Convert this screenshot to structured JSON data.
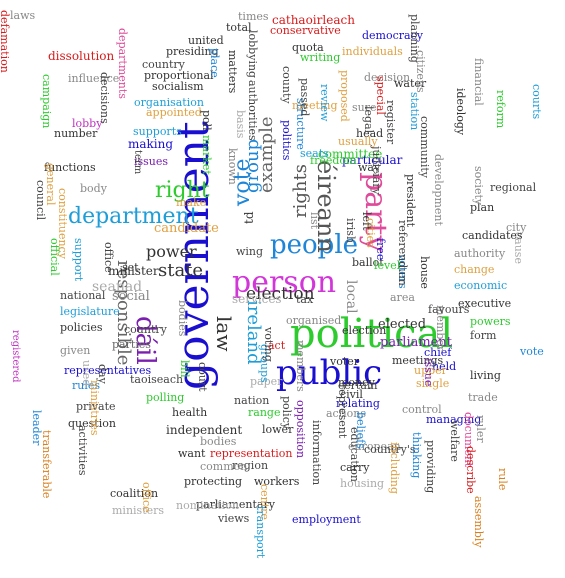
{
  "words": [
    {
      "text": "government",
      "color": "#1a0fd0"
    },
    {
      "text": "political",
      "color": "#2ecb2e"
    },
    {
      "text": "person",
      "color": "#d236d8"
    },
    {
      "text": "public",
      "color": "#1a0fd0"
    },
    {
      "text": "people",
      "color": "#1e86d8"
    },
    {
      "text": "party",
      "color": "#e04a9a"
    },
    {
      "text": "department",
      "color": "#1e9ed8"
    },
    {
      "text": "dáil",
      "color": "#7a1fb0"
    },
    {
      "text": "éireann",
      "color": "#555555"
    },
    {
      "text": "election",
      "color": "#333333"
    },
    {
      "text": "vote",
      "color": "#1e86d8"
    },
    {
      "text": "rights",
      "color": "#555555"
    },
    {
      "text": "responsible",
      "color": "#666666"
    },
    {
      "text": "state",
      "color": "#333333"
    },
    {
      "text": "law",
      "color": "#333333"
    },
    {
      "text": "right",
      "color": "#2ecb2e"
    },
    {
      "text": "example",
      "color": "#666666"
    },
    {
      "text": "group",
      "color": "#1e86d8"
    },
    {
      "text": "ireland",
      "color": "#1e9ed8"
    },
    {
      "text": "local",
      "color": "#888888"
    },
    {
      "text": "power",
      "color": "#333333"
    },
    {
      "text": "candidate",
      "color": "#e0a040"
    },
    {
      "text": "seanad",
      "color": "#aaaaaa"
    },
    {
      "text": "social",
      "color": "#888888"
    },
    {
      "text": "elected",
      "color": "#333333"
    },
    {
      "text": "parliament",
      "color": "#7a1fb0"
    },
    {
      "text": "services",
      "color": "#aaaaaa"
    },
    {
      "text": "td",
      "color": "#333333"
    },
    {
      "text": "wing",
      "color": "#444444"
    },
    {
      "text": "minister",
      "color": "#333333"
    },
    {
      "text": "national",
      "color": "#444444"
    },
    {
      "text": "policies",
      "color": "#333333"
    },
    {
      "text": "legislature",
      "color": "#1e9ed8"
    },
    {
      "text": "country",
      "color": "#444444"
    },
    {
      "text": "parties",
      "color": "#666666"
    },
    {
      "text": "representatives",
      "color": "#1a0fd0"
    },
    {
      "text": "rules",
      "color": "#1e86d8"
    },
    {
      "text": "taoiseach",
      "color": "#444444"
    },
    {
      "text": "polling",
      "color": "#2ecb2e"
    },
    {
      "text": "private",
      "color": "#444444"
    },
    {
      "text": "health",
      "color": "#333333"
    },
    {
      "text": "question",
      "color": "#333333"
    },
    {
      "text": "independent",
      "color": "#333333"
    },
    {
      "text": "nation",
      "color": "#444444"
    },
    {
      "text": "range",
      "color": "#2ecb2e"
    },
    {
      "text": "lower",
      "color": "#333333"
    },
    {
      "text": "bodies",
      "color": "#888888"
    },
    {
      "text": "want",
      "color": "#333333"
    },
    {
      "text": "representation",
      "color": "#d81b1b"
    },
    {
      "text": "region",
      "color": "#444444"
    },
    {
      "text": "common",
      "color": "#888888"
    },
    {
      "text": "protecting",
      "color": "#333333"
    },
    {
      "text": "workers",
      "color": "#333333"
    },
    {
      "text": "parliamentary",
      "color": "#333333"
    },
    {
      "text": "views",
      "color": "#444444"
    },
    {
      "text": "employment",
      "color": "#1a0fd0"
    },
    {
      "text": "coalition",
      "color": "#333333"
    },
    {
      "text": "ministers",
      "color": "#aaaaaa"
    },
    {
      "text": "activities",
      "color": "#444444"
    },
    {
      "text": "transferable",
      "color": "#d88020"
    },
    {
      "text": "leader",
      "color": "#1e86d8"
    },
    {
      "text": "registered",
      "color": "#c02fc0"
    },
    {
      "text": "official",
      "color": "#2ecb2e"
    },
    {
      "text": "support",
      "color": "#1e9ed8"
    },
    {
      "text": "given",
      "color": "#888888"
    },
    {
      "text": "office",
      "color": "#444444"
    },
    {
      "text": "set",
      "color": "#333333"
    },
    {
      "text": "functions",
      "color": "#333333"
    },
    {
      "text": "council",
      "color": "#444444"
    },
    {
      "text": "body",
      "color": "#888888"
    },
    {
      "text": "general",
      "color": "#e0a040"
    },
    {
      "text": "lobby",
      "color": "#c02fc0"
    },
    {
      "text": "number",
      "color": "#333333"
    },
    {
      "text": "supports",
      "color": "#1e9ed8"
    },
    {
      "text": "making",
      "color": "#1a0fd0"
    },
    {
      "text": "issues",
      "color": "#7a1fb0"
    },
    {
      "text": "term",
      "color": "#444444"
    },
    {
      "text": "make",
      "color": "#e0a040"
    },
    {
      "text": "organisation",
      "color": "#1e9ed8"
    },
    {
      "text": "appointed",
      "color": "#e0a040"
    },
    {
      "text": "proportional",
      "color": "#333333"
    },
    {
      "text": "country",
      "color": "#444444"
    },
    {
      "text": "influence",
      "color": "#888888"
    },
    {
      "text": "dissolution",
      "color": "#d81b1b"
    },
    {
      "text": "campaign",
      "color": "#2ecb2e"
    },
    {
      "text": "decisions",
      "color": "#444444"
    },
    {
      "text": "socialism",
      "color": "#333333"
    },
    {
      "text": "presiding",
      "color": "#333333"
    },
    {
      "text": "united",
      "color": "#333333"
    },
    {
      "text": "total",
      "color": "#333333"
    },
    {
      "text": "cathaoirleach",
      "color": "#d81b1b"
    },
    {
      "text": "conservative",
      "color": "#d81b1b"
    },
    {
      "text": "democracy",
      "color": "#1a0fd0"
    },
    {
      "text": "quota",
      "color": "#333333"
    },
    {
      "text": "writing",
      "color": "#2ecb2e"
    },
    {
      "text": "individuals",
      "color": "#e0a040"
    },
    {
      "text": "decision",
      "color": "#888888"
    },
    {
      "text": "special",
      "color": "#d81b1b"
    },
    {
      "text": "times",
      "color": "#888888"
    },
    {
      "text": "lobbying",
      "color": "#444444"
    },
    {
      "text": "place",
      "color": "#1e86d8"
    },
    {
      "text": "matters",
      "color": "#333333"
    },
    {
      "text": "meeting",
      "color": "#e0a040"
    },
    {
      "text": "authorities",
      "color": "#444444"
    },
    {
      "text": "basis",
      "color": "#aaaaaa"
    },
    {
      "text": "politics",
      "color": "#1a0fd0"
    },
    {
      "text": "structure",
      "color": "#1e86d8"
    },
    {
      "text": "known",
      "color": "#888888"
    },
    {
      "text": "poll",
      "color": "#333333"
    },
    {
      "text": "market",
      "color": "#2ecb2e"
    },
    {
      "text": "particular",
      "color": "#1a0fd0"
    },
    {
      "text": "committee",
      "color": "#2ecb2e"
    },
    {
      "text": "seats",
      "color": "#1e9ed8"
    },
    {
      "text": "usually",
      "color": "#e0a040"
    },
    {
      "text": "head",
      "color": "#333333"
    },
    {
      "text": "sure",
      "color": "#888888"
    },
    {
      "text": "freedom",
      "color": "#2ecb2e"
    },
    {
      "text": "way",
      "color": "#333333"
    },
    {
      "text": "register",
      "color": "#444444"
    },
    {
      "text": "legal",
      "color": "#444444"
    },
    {
      "text": "water",
      "color": "#333333"
    },
    {
      "text": "judiciary",
      "color": "#444444"
    },
    {
      "text": "president",
      "color": "#333333"
    },
    {
      "text": "voters",
      "color": "#1e86d8"
    },
    {
      "text": "house",
      "color": "#333333"
    },
    {
      "text": "list",
      "color": "#888888"
    },
    {
      "text": "left",
      "color": "#333333"
    },
    {
      "text": "ballot",
      "color": "#333333"
    },
    {
      "text": "irish",
      "color": "#444444"
    },
    {
      "text": "cities",
      "color": "#e0a040"
    },
    {
      "text": "free",
      "color": "#1a0fd0"
    },
    {
      "text": "referendum",
      "color": "#444444"
    },
    {
      "text": "area",
      "color": "#888888"
    },
    {
      "text": "election",
      "color": "#333333"
    },
    {
      "text": "chief",
      "color": "#1a0fd0"
    },
    {
      "text": "held",
      "color": "#1a0fd0"
    },
    {
      "text": "meetings",
      "color": "#333333"
    },
    {
      "text": "member",
      "color": "#888888"
    },
    {
      "text": "upper",
      "color": "#e0a040"
    },
    {
      "text": "single",
      "color": "#e0a040"
    },
    {
      "text": "money",
      "color": "#333333"
    },
    {
      "text": "civil",
      "color": "#333333"
    },
    {
      "text": "relating",
      "color": "#1a0fd0"
    },
    {
      "text": "actions",
      "color": "#888888"
    },
    {
      "text": "control",
      "color": "#888888"
    },
    {
      "text": "managing",
      "color": "#1a0fd0"
    },
    {
      "text": "education",
      "color": "#444444"
    },
    {
      "text": "european",
      "color": "#888888"
    },
    {
      "text": "country's",
      "color": "#444444"
    },
    {
      "text": "carry",
      "color": "#333333"
    },
    {
      "text": "housing",
      "color": "#aaaaaa"
    },
    {
      "text": "information",
      "color": "#444444"
    },
    {
      "text": "opposition",
      "color": "#7a1fb0"
    },
    {
      "text": "policy",
      "color": "#444444"
    },
    {
      "text": "members",
      "color": "#888888"
    },
    {
      "text": "voter",
      "color": "#333333"
    },
    {
      "text": "certain",
      "color": "#444444"
    },
    {
      "text": "act",
      "color": "#d81b1b"
    },
    {
      "text": "paper",
      "color": "#aaaaaa"
    },
    {
      "text": "groups",
      "color": "#1e9ed8"
    },
    {
      "text": "voting",
      "color": "#444444"
    },
    {
      "text": "court",
      "color": "#444444"
    },
    {
      "text": "bill",
      "color": "#2ecb2e"
    },
    {
      "text": "organised",
      "color": "#888888"
    },
    {
      "text": "including",
      "color": "#e0a040"
    },
    {
      "text": "beliefs",
      "color": "#1e86d8"
    },
    {
      "text": "providing",
      "color": "#444444"
    },
    {
      "text": "thinking",
      "color": "#1e86d8"
    },
    {
      "text": "welfare",
      "color": "#444444"
    },
    {
      "text": "document",
      "color": "#e04a9a"
    },
    {
      "text": "describe",
      "color": "#d81b1b"
    },
    {
      "text": "assembly",
      "color": "#d88020"
    },
    {
      "text": "rule",
      "color": "#d88020"
    },
    {
      "text": "ruler",
      "color": "#888888"
    },
    {
      "text": "trade",
      "color": "#888888"
    },
    {
      "text": "living",
      "color": "#333333"
    },
    {
      "text": "vote",
      "color": "#1e86d8"
    },
    {
      "text": "form",
      "color": "#444444"
    },
    {
      "text": "powers",
      "color": "#2ecb2e"
    },
    {
      "text": "executive",
      "color": "#333333"
    },
    {
      "text": "economic",
      "color": "#1e9ed8"
    },
    {
      "text": "change",
      "color": "#e0a040"
    },
    {
      "text": "authority",
      "color": "#888888"
    },
    {
      "text": "city",
      "color": "#888888"
    },
    {
      "text": "cause",
      "color": "#aaaaaa"
    },
    {
      "text": "candidates",
      "color": "#333333"
    },
    {
      "text": "plan",
      "color": "#333333"
    },
    {
      "text": "regional",
      "color": "#444444"
    },
    {
      "text": "society",
      "color": "#888888"
    },
    {
      "text": "development",
      "color": "#888888"
    },
    {
      "text": "community",
      "color": "#444444"
    },
    {
      "text": "station",
      "color": "#1e9ed8"
    },
    {
      "text": "citizens",
      "color": "#888888"
    },
    {
      "text": "financial",
      "color": "#888888"
    },
    {
      "text": "ideology",
      "color": "#333333"
    },
    {
      "text": "reform",
      "color": "#2ecb2e"
    },
    {
      "text": "courts",
      "color": "#1e9ed8"
    },
    {
      "text": "planning",
      "color": "#444444"
    },
    {
      "text": "proposed",
      "color": "#e0a040"
    },
    {
      "text": "review",
      "color": "#1e9ed8"
    },
    {
      "text": "passed",
      "color": "#444444"
    },
    {
      "text": "county",
      "color": "#444444"
    },
    {
      "text": "departments",
      "color": "#e04a9a"
    },
    {
      "text": "defamation",
      "color": "#d81b1b"
    },
    {
      "text": "constituency",
      "color": "#e0a040"
    },
    {
      "text": "ministries",
      "color": "#e0a040"
    },
    {
      "text": "day",
      "color": "#444444"
    },
    {
      "text": "used",
      "color": "#aaaaaa"
    },
    {
      "text": "issue",
      "color": "#7a1fb0"
    },
    {
      "text": "office",
      "color": "#e0a040"
    },
    {
      "text": "nomination",
      "color": "#aaaaaa"
    },
    {
      "text": "centre",
      "color": "#e0a040"
    },
    {
      "text": "transport",
      "color": "#1e9ed8"
    },
    {
      "text": "represent",
      "color": "#444444"
    },
    {
      "text": "favours",
      "color": "#444444"
    },
    {
      "text": "level",
      "color": "#2ecb2e"
    },
    {
      "text": "tax",
      "color": "#444444"
    },
    {
      "text": "bodies",
      "color": "#888888"
    },
    {
      "text": "laws",
      "color": "#888888"
    }
  ]
}
